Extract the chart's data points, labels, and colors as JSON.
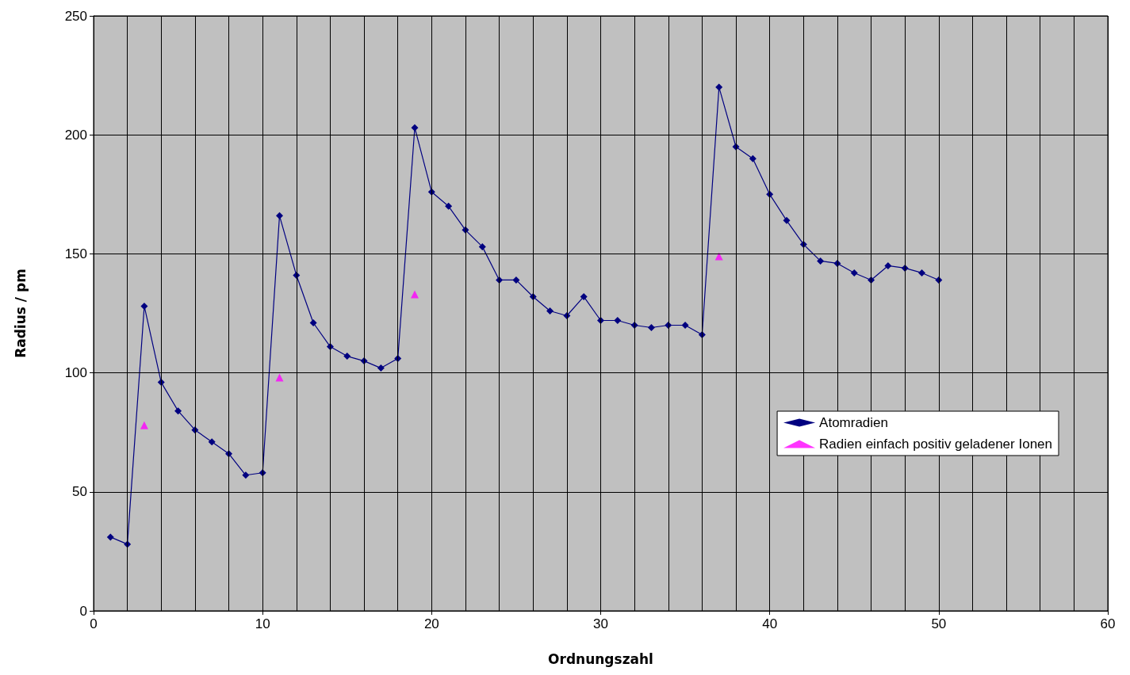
{
  "chart_data": {
    "type": "line",
    "xlabel": "Ordnungszahl",
    "ylabel": "Radius / pm",
    "xlim": [
      0,
      60
    ],
    "xticks": [
      0,
      {
        "value": 2,
        "label": null
      },
      {
        "value": 4,
        "label": null
      },
      {
        "value": 6,
        "label": null
      },
      {
        "value": 8,
        "label": null
      },
      10,
      {
        "value": 12,
        "label": null
      },
      {
        "value": 14,
        "label": null
      },
      {
        "value": 16,
        "label": null
      },
      {
        "value": 18,
        "label": null
      },
      20,
      {
        "value": 22,
        "label": null
      },
      {
        "value": 24,
        "label": null
      },
      {
        "value": 26,
        "label": null
      },
      {
        "value": 28,
        "label": null
      },
      30,
      {
        "value": 32,
        "label": null
      },
      {
        "value": 34,
        "label": null
      },
      {
        "value": 36,
        "label": null
      },
      {
        "value": 38,
        "label": null
      },
      40,
      {
        "value": 42,
        "label": null
      },
      {
        "value": 44,
        "label": null
      },
      {
        "value": 46,
        "label": null
      },
      {
        "value": 48,
        "label": null
      },
      50,
      {
        "value": 52,
        "label": null
      },
      {
        "value": 54,
        "label": null
      },
      {
        "value": 56,
        "label": null
      },
      {
        "value": 58,
        "label": null
      },
      60
    ],
    "ylim": [
      0,
      250
    ],
    "yticks": [
      0,
      50,
      100,
      150,
      200,
      250
    ],
    "grid": true,
    "legend": "right",
    "series": [
      {
        "name": "Atomradien",
        "marker": "diamond",
        "color": "#000080",
        "x": [
          1,
          2,
          3,
          4,
          5,
          6,
          7,
          8,
          9,
          10,
          11,
          12,
          13,
          14,
          15,
          16,
          17,
          18,
          19,
          20,
          21,
          22,
          23,
          24,
          25,
          26,
          27,
          28,
          29,
          30,
          31,
          32,
          33,
          34,
          35,
          36,
          37,
          38,
          39,
          40,
          41,
          42,
          43,
          44,
          45,
          46,
          47,
          48,
          49,
          50
        ],
        "values": [
          31,
          28,
          128,
          96,
          84,
          76,
          71,
          66,
          57,
          58,
          166,
          141,
          121,
          111,
          107,
          105,
          102,
          106,
          203,
          176,
          170,
          160,
          153,
          139,
          139,
          132,
          126,
          124,
          132,
          122,
          122,
          120,
          119,
          120,
          120,
          116,
          220,
          195,
          190,
          175,
          164,
          154,
          147,
          146,
          142,
          139,
          145,
          144,
          142,
          139
        ]
      },
      {
        "name": "Radien einfach positiv geladener Ionen",
        "type": "scatter",
        "marker": "triangle",
        "color": "#ff00ff",
        "x": [
          3,
          11,
          19,
          37
        ],
        "values": [
          78,
          98,
          133,
          149
        ]
      }
    ]
  }
}
